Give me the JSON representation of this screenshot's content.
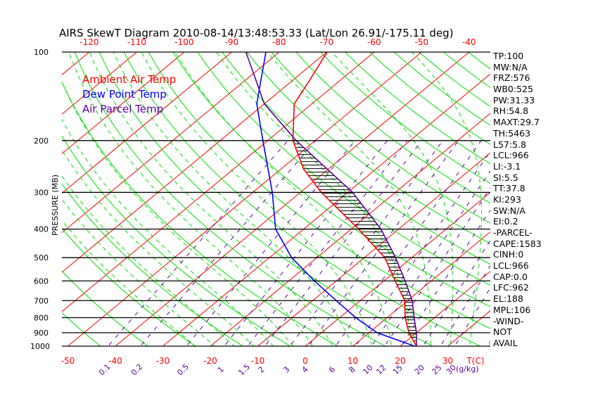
{
  "chart_data": {
    "type": "line",
    "title": "AIRS SkewT Diagram 2010-08-14/13:48:53.33 (Lat/Lon 26.91/-175.11 deg)",
    "ylabel": "PRESSURE (MB)",
    "xlabel": "T(C)",
    "mixing_ratio_unit": "(g/kg)",
    "pressure_levels": [
      100,
      200,
      300,
      400,
      500,
      600,
      700,
      800,
      900,
      1000
    ],
    "top_temp_ticks": [
      -120,
      -110,
      -100,
      -90,
      -80,
      -70,
      -60,
      -50,
      -40
    ],
    "bottom_temp_ticks": [
      -50,
      -40,
      -30,
      -20,
      -10,
      0,
      10,
      20,
      30
    ],
    "mixing_ratio_labels": [
      "0.1",
      "0.2",
      "0.5",
      "1",
      "1.5",
      "2",
      "3",
      "4",
      "6",
      "8",
      "10",
      "12",
      "15",
      "20",
      "25",
      "30"
    ],
    "ylim": [
      1000,
      100
    ],
    "legend": [
      {
        "label": "Ambient Air Temp",
        "color": "#ff0000"
      },
      {
        "label": "Dew Point Temp",
        "color": "#0000ff"
      },
      {
        "label": "Air Parcel Temp",
        "color": "#5a00a0"
      }
    ],
    "series": [
      {
        "name": "Ambient Air Temp",
        "color": "#ff0000",
        "p": [
          1000,
          900,
          800,
          700,
          600,
          500,
          400,
          300,
          250,
          200,
          150,
          125,
          100
        ],
        "t": [
          23.4,
          18.4,
          13.8,
          9.4,
          2.4,
          -5.7,
          -18.4,
          -35.6,
          -45.2,
          -54.7,
          -63.7,
          -66.4,
          -69.9
        ]
      },
      {
        "name": "Dew Point Temp",
        "color": "#0000ff",
        "p": [
          1000,
          900,
          800,
          700,
          600,
          500,
          400,
          300,
          200,
          150,
          100
        ],
        "t": [
          23.0,
          11.7,
          3.4,
          -5.0,
          -14.6,
          -25.3,
          -35.9,
          -45.9,
          -61.0,
          -71.6,
          -82.8
        ]
      },
      {
        "name": "Air Parcel Temp",
        "color": "#5a00a0",
        "p": [
          1000,
          900,
          800,
          700,
          600,
          500,
          400,
          300,
          200,
          150,
          100
        ],
        "t": [
          23.4,
          20.0,
          15.7,
          11.0,
          4.5,
          -3.4,
          -13.7,
          -29.0,
          -54.0,
          -70.0,
          -87.0
        ]
      }
    ],
    "cape_hatch_range_mb": [
      960,
      190
    ]
  },
  "indices": [
    "TP:100",
    "MW:N/A",
    "FRZ:576",
    "WB0:525",
    "PW:31.33",
    "RH:54.8",
    "MAXT:29.7",
    "TH:5463",
    "L57:5.8",
    "LCL:966",
    "LI:-3.1",
    "SI:5.5",
    "TT:37.8",
    "KI:293",
    "SW:N/A",
    "EI:0.2",
    "-PARCEL-",
    "CAPE:1583",
    "CINH:0",
    "LCL:966",
    "CAP:0.0",
    "LFC:962",
    "EL:188",
    "MPL:106",
    "-WIND-",
    "NOT",
    "AVAIL"
  ],
  "colors": {
    "isotherm": "#ff0000",
    "dry_adiabat": "#00e000",
    "moist_adiabat": "#00e000",
    "mixing_ratio": "#5a00a0",
    "frame": "#000000"
  }
}
